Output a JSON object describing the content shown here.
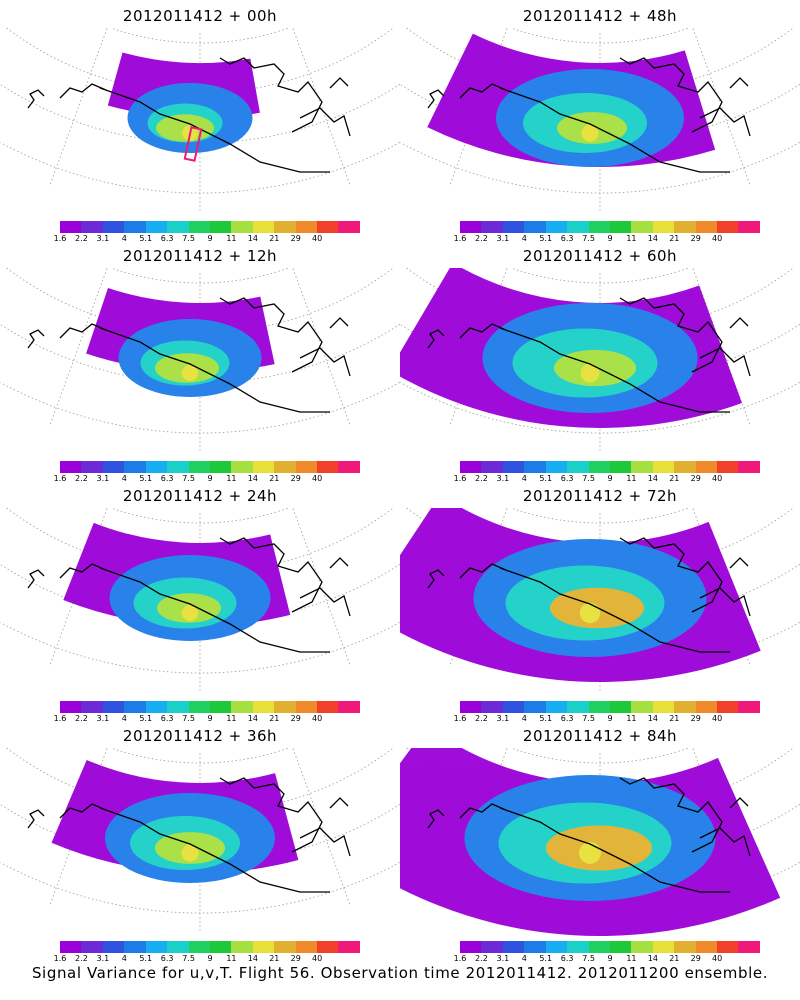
{
  "panels": [
    {
      "title": "2012011412 + 00h",
      "spread": 0.25,
      "hot": 0.35
    },
    {
      "title": "2012011412 + 48h",
      "spread": 0.6,
      "hot": 0.45
    },
    {
      "title": "2012011412 + 12h",
      "spread": 0.35,
      "hot": 0.4
    },
    {
      "title": "2012011412 + 60h",
      "spread": 0.75,
      "hot": 0.55
    },
    {
      "title": "2012011412 + 24h",
      "spread": 0.45,
      "hot": 0.4
    },
    {
      "title": "2012011412 + 72h",
      "spread": 0.85,
      "hot": 0.65
    },
    {
      "title": "2012011412 + 36h",
      "spread": 0.5,
      "hot": 0.45
    },
    {
      "title": "2012011412 + 84h",
      "spread": 0.95,
      "hot": 0.75
    }
  ],
  "colorbar": {
    "ticks": [
      "1.6",
      "2.2",
      "3.1",
      "4",
      "5.1",
      "6.3",
      "7.5",
      "9",
      "11",
      "14",
      "21",
      "29",
      "40"
    ],
    "colors": [
      "#9a00d8",
      "#6f2ad8",
      "#2f52e0",
      "#1e7ce8",
      "#16aef0",
      "#1ad0c8",
      "#20d060",
      "#1ec83a",
      "#a6e040",
      "#e6e038",
      "#e2b030",
      "#f08a2a",
      "#f0402a",
      "#f01878"
    ]
  },
  "caption": "Signal Variance for u,v,T. Flight 56. Observation time 2012011412. 2012011200 ensemble."
}
